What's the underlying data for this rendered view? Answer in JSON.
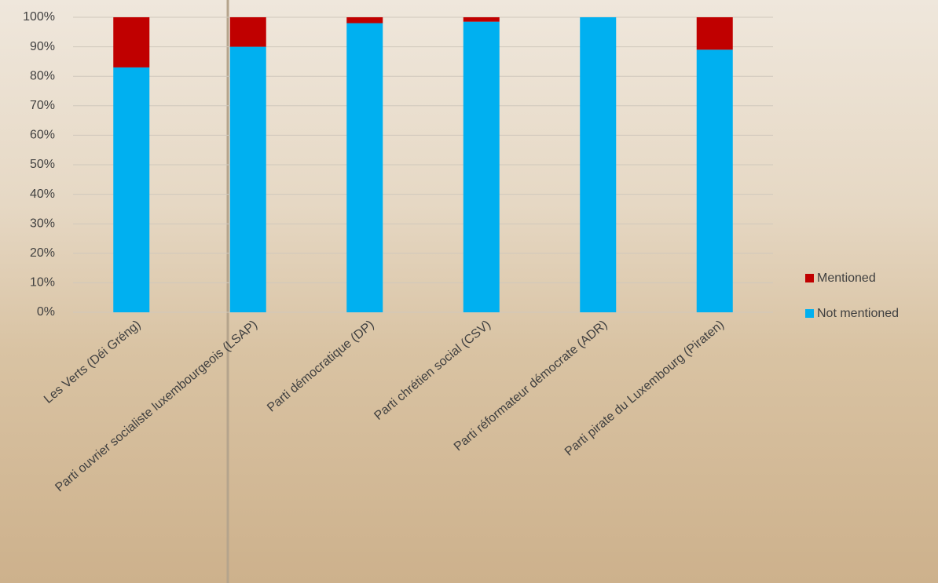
{
  "chart_data": {
    "type": "stacked_bar",
    "categories": [
      "Les Verts (Déi Gréng)",
      "Parti ouvrier socialiste luxembourgeois (LSAP)",
      "Parti démocratique (DP)",
      "Parti chrétien social (CSV)",
      "Parti réformateur démocrate (ADR)",
      "Parti pirate du Luxembourg (Piraten)"
    ],
    "series": [
      {
        "name": "Not mentioned",
        "color": "#00b0f0",
        "values": [
          83,
          90,
          98,
          98.5,
          100,
          89
        ]
      },
      {
        "name": "Mentioned",
        "color": "#c00000",
        "values": [
          17,
          10,
          2,
          1.5,
          0,
          11
        ]
      }
    ],
    "ylim": [
      0,
      100
    ],
    "yticks": [
      {
        "value": 0,
        "label": "0%"
      },
      {
        "value": 10,
        "label": "10%"
      },
      {
        "value": 20,
        "label": "20%"
      },
      {
        "value": 30,
        "label": "30%"
      },
      {
        "value": 40,
        "label": "40%"
      },
      {
        "value": 50,
        "label": "50%"
      },
      {
        "value": 60,
        "label": "60%"
      },
      {
        "value": 70,
        "label": "70%"
      },
      {
        "value": 80,
        "label": "80%"
      },
      {
        "value": 90,
        "label": "90%"
      },
      {
        "value": 100,
        "label": "100%"
      }
    ],
    "grid": true,
    "legend": "right"
  }
}
